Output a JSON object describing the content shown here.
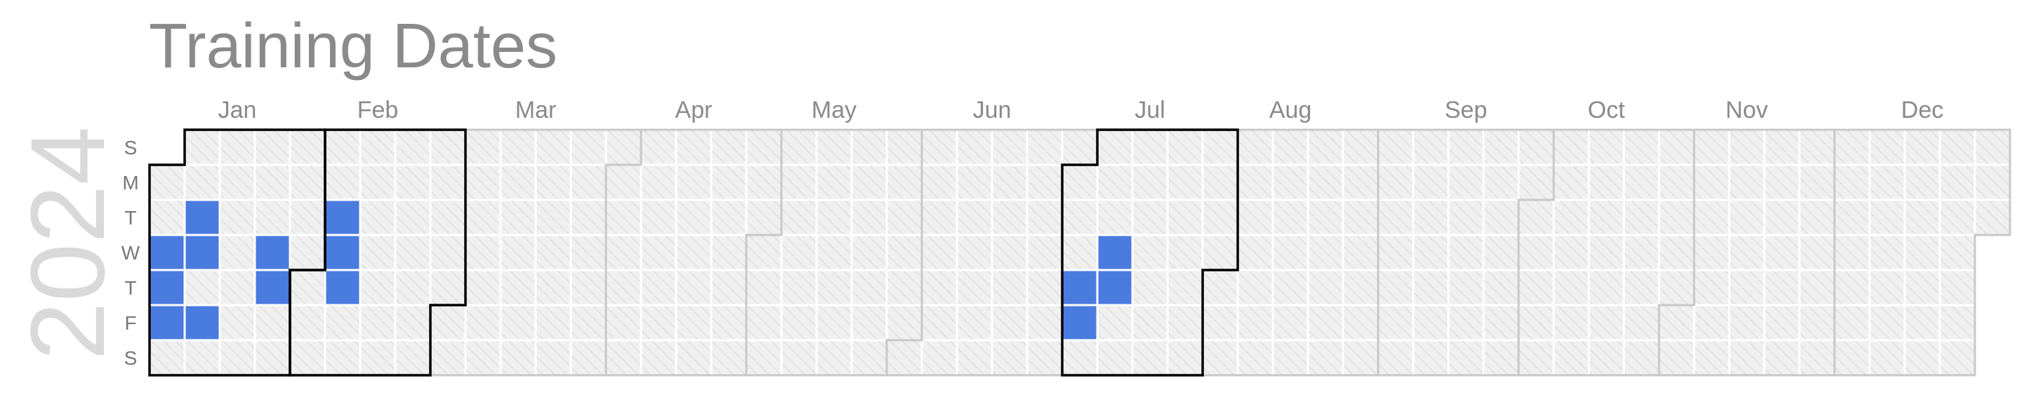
{
  "chart_data": {
    "type": "heatmap",
    "title": "Training Dates",
    "year": "2024",
    "week_start": "Sunday",
    "day_labels": [
      "S",
      "M",
      "T",
      "W",
      "T",
      "F",
      "S"
    ],
    "month_labels": [
      "Jan",
      "Feb",
      "Mar",
      "Apr",
      "May",
      "Jun",
      "Jul",
      "Aug",
      "Sep",
      "Oct",
      "Nov",
      "Dec"
    ],
    "highlighted_months": [
      "Jan",
      "Feb",
      "Jul"
    ],
    "training_dates": [
      "2024-01-03",
      "2024-01-04",
      "2024-01-05",
      "2024-01-09",
      "2024-01-10",
      "2024-01-12",
      "2024-01-24",
      "2024-01-25",
      "2024-02-06",
      "2024-02-07",
      "2024-02-08",
      "2024-07-04",
      "2024-07-05",
      "2024-07-10",
      "2024-07-11"
    ],
    "colors": {
      "training": "#4a7bdf",
      "empty_cell": "#f0f0f0",
      "hatch": "#e2e2e2",
      "cell_border": "#ffffff",
      "month_outline": "#c8c8c8",
      "highlight_outline": "#000000"
    },
    "grid": true,
    "legend": "none"
  }
}
